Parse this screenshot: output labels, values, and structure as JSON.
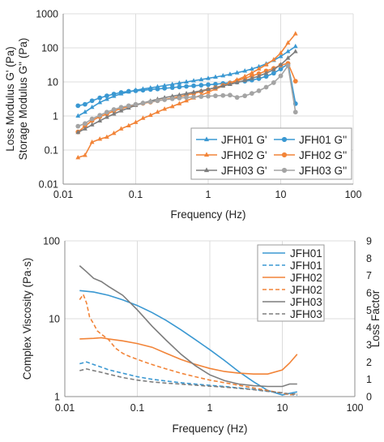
{
  "colors": {
    "JFH01": "#3a98d2",
    "JFH02": "#f28438",
    "JFH03": "#7d7d7d",
    "JFH03_loss": "#a4a4a4",
    "grid": "#dcdcdc",
    "axis": "#8c8c8c",
    "text": "#222222"
  },
  "chart_data": [
    {
      "type": "line",
      "xscale": "log",
      "yscale": "log",
      "xlim": [
        0.01,
        100
      ],
      "ylim": [
        0.01,
        1000
      ],
      "xlabel": "Frequency (Hz)",
      "ylabel_lines": [
        "Loss Modulus G' (Pa)",
        "Storage Modulus G'' (Pa)"
      ],
      "xticks": [
        "0.01",
        "0.1",
        "1",
        "10",
        "100"
      ],
      "yticks": [
        "0.01",
        "0.1",
        "1",
        "10",
        "100",
        "1000"
      ],
      "grid": true,
      "legend_position": "bottom-right",
      "series": [
        {
          "name": "JFH01 G'",
          "color": "JFH01",
          "marker": "triangle",
          "x": [
            0.016,
            0.02,
            0.025,
            0.032,
            0.04,
            0.05,
            0.063,
            0.08,
            0.1,
            0.126,
            0.16,
            0.2,
            0.25,
            0.32,
            0.4,
            0.5,
            0.63,
            0.8,
            1.0,
            1.26,
            1.6,
            2.0,
            2.5,
            3.2,
            4.0,
            5.0,
            6.3,
            8.0,
            10.0,
            12.6,
            16.0
          ],
          "y": [
            1.0,
            1.3,
            1.8,
            2.5,
            3.1,
            3.8,
            4.5,
            5.1,
            5.7,
            6.2,
            6.7,
            7.2,
            7.8,
            8.5,
            9.2,
            10.0,
            10.8,
            11.7,
            12.7,
            13.9,
            15.2,
            16.7,
            18.6,
            21.0,
            24.0,
            28.0,
            34.0,
            43.0,
            56.0,
            78.0,
            110.0
          ]
        },
        {
          "name": "JFH01 G''",
          "color": "JFH01",
          "marker": "circle",
          "x": [
            0.016,
            0.02,
            0.025,
            0.032,
            0.04,
            0.05,
            0.063,
            0.08,
            0.1,
            0.126,
            0.16,
            0.2,
            0.25,
            0.32,
            0.4,
            0.5,
            0.63,
            0.8,
            1.0,
            1.26,
            1.6,
            2.0,
            2.5,
            3.2,
            4.0,
            5.0,
            6.3,
            8.0,
            10.0,
            12.6,
            16.0
          ],
          "y": [
            2.0,
            2.2,
            2.8,
            3.4,
            3.9,
            4.4,
            4.9,
            5.3,
            5.5,
            5.7,
            6.0,
            6.2,
            6.5,
            6.8,
            7.1,
            7.4,
            7.7,
            8.0,
            8.3,
            8.6,
            9.0,
            9.4,
            9.9,
            10.5,
            11.3,
            12.5,
            14.5,
            18.0,
            24.0,
            34.0,
            2.3
          ]
        },
        {
          "name": "JFH02 G'",
          "color": "JFH02",
          "marker": "triangle",
          "x": [
            0.016,
            0.02,
            0.025,
            0.032,
            0.04,
            0.05,
            0.063,
            0.08,
            0.1,
            0.126,
            0.16,
            0.2,
            0.25,
            0.32,
            0.4,
            0.5,
            0.63,
            0.8,
            1.0,
            1.26,
            1.6,
            2.0,
            2.5,
            3.2,
            4.0,
            5.0,
            6.3,
            8.0,
            10.0,
            12.6,
            16.0
          ],
          "y": [
            0.06,
            0.07,
            0.17,
            0.21,
            0.24,
            0.31,
            0.42,
            0.52,
            0.65,
            0.86,
            1.05,
            1.3,
            1.6,
            1.9,
            2.3,
            2.8,
            3.4,
            4.1,
            5.0,
            6.2,
            7.6,
            9.3,
            11.5,
            14.5,
            18.5,
            24.0,
            32.0,
            45.0,
            70.0,
            140.0,
            260.0
          ]
        },
        {
          "name": "JFH02 G''",
          "color": "JFH02",
          "marker": "circle",
          "x": [
            0.016,
            0.02,
            0.025,
            0.032,
            0.04,
            0.05,
            0.063,
            0.08,
            0.1,
            0.126,
            0.16,
            0.2,
            0.25,
            0.32,
            0.4,
            0.5,
            0.63,
            0.8,
            1.0,
            1.26,
            1.6,
            2.0,
            2.5,
            3.2,
            4.0,
            5.0,
            6.3,
            8.0,
            10.0,
            12.6,
            16.0
          ],
          "y": [
            0.34,
            0.5,
            0.73,
            0.95,
            1.15,
            1.4,
            1.65,
            1.9,
            2.15,
            2.35,
            2.55,
            2.8,
            3.05,
            3.35,
            3.7,
            4.1,
            4.6,
            5.2,
            5.9,
            6.8,
            7.9,
            9.2,
            10.8,
            12.8,
            15.0,
            17.5,
            21.0,
            25.0,
            31.0,
            35.0,
            10.5
          ]
        },
        {
          "name": "JFH03 G'",
          "color": "JFH03",
          "marker": "triangle",
          "x": [
            0.016,
            0.02,
            0.025,
            0.032,
            0.04,
            0.05,
            0.063,
            0.08,
            0.1,
            0.126,
            0.16,
            0.2,
            0.25,
            0.32,
            0.4,
            0.5,
            0.63,
            0.8,
            1.0,
            1.26,
            1.6,
            2.0,
            2.5,
            3.2,
            4.0,
            5.0,
            6.3,
            8.0,
            10.0,
            12.6,
            16.0
          ],
          "y": [
            0.33,
            0.42,
            0.55,
            0.72,
            0.92,
            1.15,
            1.42,
            1.72,
            2.05,
            2.4,
            2.75,
            3.1,
            3.45,
            3.8,
            4.15,
            4.55,
            5.0,
            5.5,
            6.1,
            6.8,
            7.6,
            8.5,
            9.6,
            11.0,
            12.7,
            14.8,
            18.0,
            23.0,
            32.0,
            50.0,
            78.0
          ]
        },
        {
          "name": "JFH03 G''",
          "color": "JFH03_loss",
          "marker": "circle",
          "x": [
            0.016,
            0.02,
            0.025,
            0.032,
            0.04,
            0.05,
            0.063,
            0.08,
            0.1,
            0.126,
            0.16,
            0.2,
            0.25,
            0.32,
            0.4,
            0.5,
            0.63,
            0.8,
            1.0,
            1.26,
            1.6,
            2.0,
            2.5,
            3.2,
            4.0,
            5.0,
            6.3,
            8.0,
            10.0,
            12.6,
            16.0
          ],
          "y": [
            0.5,
            0.6,
            0.82,
            1.05,
            1.3,
            1.55,
            1.8,
            2.0,
            2.2,
            2.4,
            2.6,
            2.8,
            3.0,
            3.2,
            3.35,
            3.5,
            3.6,
            3.7,
            3.8,
            3.9,
            4.0,
            4.1,
            3.5,
            3.9,
            4.6,
            5.5,
            7.0,
            9.5,
            15.0,
            30.0,
            1.3
          ]
        }
      ]
    },
    {
      "type": "line",
      "xscale": "log",
      "yscale": "log",
      "xlim": [
        0.01,
        100
      ],
      "ylim": [
        1,
        100
      ],
      "y2lim": [
        0,
        9
      ],
      "xlabel": "Frequency (Hz)",
      "ylabel": "Complex Viscosity (Pa·s)",
      "y2label": "Loss Factor",
      "xticks": [
        "0.01",
        "0.1",
        "1",
        "10",
        "100"
      ],
      "yticks": [
        "1",
        "10",
        "100"
      ],
      "y2ticks": [
        "0",
        "1",
        "2",
        "3",
        "4",
        "5",
        "6",
        "7",
        "8",
        "9"
      ],
      "grid": true,
      "legend_position": "top-right",
      "series": [
        {
          "name": "JFH01",
          "color": "JFH01",
          "dash": false,
          "axis": "left",
          "x": [
            0.016,
            0.025,
            0.04,
            0.063,
            0.1,
            0.16,
            0.25,
            0.4,
            0.63,
            1.0,
            1.6,
            2.5,
            4.0,
            6.3,
            10.0,
            12.6,
            16.0
          ],
          "y": [
            23.0,
            22.0,
            20.0,
            17.5,
            14.8,
            12.0,
            9.5,
            7.2,
            5.4,
            4.0,
            2.9,
            2.1,
            1.55,
            1.2,
            1.05,
            1.1,
            1.15
          ]
        },
        {
          "name": "JFH01",
          "color": "JFH01",
          "dash": true,
          "axis": "right",
          "x": [
            0.016,
            0.02,
            0.025,
            0.032,
            0.04,
            0.063,
            0.1,
            0.16,
            0.25,
            0.4,
            0.63,
            1.0,
            1.6,
            2.5,
            4.0,
            6.3,
            10.0,
            12.6,
            16.0
          ],
          "y": [
            1.9,
            2.0,
            1.85,
            1.7,
            1.55,
            1.35,
            1.15,
            1.0,
            0.9,
            0.8,
            0.72,
            0.65,
            0.58,
            0.5,
            0.42,
            0.32,
            0.2,
            0.12,
            0.08
          ]
        },
        {
          "name": "JFH02",
          "color": "JFH02",
          "dash": false,
          "axis": "left",
          "x": [
            0.016,
            0.025,
            0.032,
            0.04,
            0.063,
            0.1,
            0.16,
            0.25,
            0.4,
            0.63,
            1.0,
            1.6,
            2.5,
            4.0,
            6.3,
            10.0,
            12.6,
            16.0
          ],
          "y": [
            5.5,
            5.6,
            5.7,
            5.5,
            5.2,
            4.8,
            4.3,
            3.6,
            3.0,
            2.6,
            2.3,
            2.1,
            2.0,
            1.95,
            1.95,
            2.2,
            2.7,
            3.5
          ]
        },
        {
          "name": "JFH02",
          "color": "JFH02",
          "dash": true,
          "axis": "right",
          "x": [
            0.016,
            0.018,
            0.02,
            0.022,
            0.025,
            0.028,
            0.032,
            0.04,
            0.05,
            0.063,
            0.08,
            0.1,
            0.126,
            0.16,
            0.25,
            0.4,
            0.63,
            1.0,
            1.6,
            2.5,
            4.0,
            6.3,
            10.0,
            12.6,
            16.0
          ],
          "y": [
            5.6,
            5.9,
            5.4,
            4.6,
            4.2,
            3.8,
            3.6,
            3.3,
            2.8,
            2.5,
            2.3,
            2.15,
            2.0,
            1.85,
            1.6,
            1.35,
            1.15,
            0.95,
            0.8,
            0.65,
            0.5,
            0.35,
            0.2,
            0.1,
            0.15
          ]
        },
        {
          "name": "JFH03",
          "color": "JFH03",
          "dash": false,
          "axis": "left",
          "x": [
            0.016,
            0.02,
            0.025,
            0.032,
            0.04,
            0.063,
            0.1,
            0.16,
            0.25,
            0.4,
            0.63,
            1.0,
            1.6,
            2.5,
            4.0,
            6.3,
            10.0,
            12.6,
            16.0
          ],
          "y": [
            48.0,
            40.0,
            33.0,
            30.0,
            26.0,
            20.0,
            13.0,
            8.0,
            5.3,
            3.5,
            2.5,
            1.9,
            1.6,
            1.45,
            1.38,
            1.35,
            1.35,
            1.45,
            1.45
          ]
        },
        {
          "name": "JFH03",
          "color": "JFH03",
          "dash": true,
          "axis": "right",
          "x": [
            0.016,
            0.02,
            0.025,
            0.032,
            0.04,
            0.063,
            0.1,
            0.16,
            0.25,
            0.4,
            0.63,
            1.0,
            1.6,
            2.5,
            4.0,
            6.3,
            10.0,
            12.6,
            16.0
          ],
          "y": [
            1.5,
            1.6,
            1.5,
            1.4,
            1.3,
            1.1,
            0.95,
            0.85,
            0.78,
            0.72,
            0.66,
            0.6,
            0.55,
            0.48,
            0.4,
            0.3,
            0.22,
            0.15,
            0.15
          ]
        }
      ]
    }
  ]
}
